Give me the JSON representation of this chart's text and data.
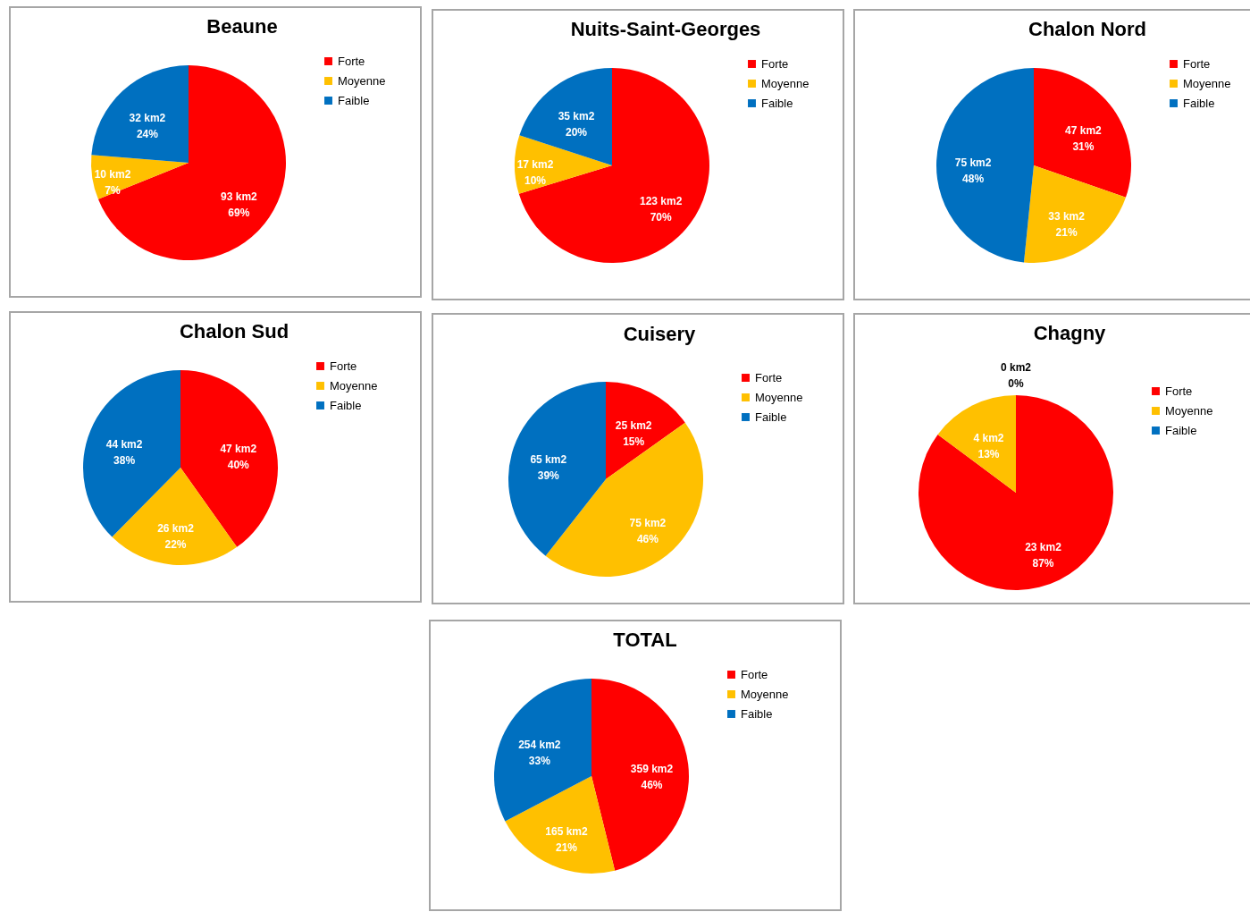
{
  "chart_data": [
    {
      "type": "pie",
      "title": "Beaune",
      "categories": [
        "Forte",
        "Moyenne",
        "Faible"
      ],
      "values": [
        93,
        10,
        32
      ],
      "value_labels": [
        "93 km2\n69%",
        "10 km2\n7%",
        "32 km2\n24%"
      ],
      "colors": [
        "#ff0000",
        "#ffc000",
        "#0070c0"
      ],
      "legend": "right"
    },
    {
      "type": "pie",
      "title": "Nuits-Saint-Georges",
      "categories": [
        "Forte",
        "Moyenne",
        "Faible"
      ],
      "values": [
        123,
        17,
        35
      ],
      "value_labels": [
        "123 km2\n70%",
        "17 km2\n10%",
        "35 km2\n20%"
      ],
      "colors": [
        "#ff0000",
        "#ffc000",
        "#0070c0"
      ],
      "legend": "right"
    },
    {
      "type": "pie",
      "title": "Chalon Nord",
      "categories": [
        "Forte",
        "Moyenne",
        "Faible"
      ],
      "values": [
        47,
        33,
        75
      ],
      "value_labels": [
        "47 km2\n31%",
        "33 km2\n21%",
        "75 km2\n48%"
      ],
      "colors": [
        "#ff0000",
        "#ffc000",
        "#0070c0"
      ],
      "legend": "right"
    },
    {
      "type": "pie",
      "title": "Chalon Sud",
      "categories": [
        "Forte",
        "Moyenne",
        "Faible"
      ],
      "values": [
        47,
        26,
        44
      ],
      "value_labels": [
        "47 km2\n40%",
        "26 km2\n22%",
        "44 km2\n38%"
      ],
      "colors": [
        "#ff0000",
        "#ffc000",
        "#0070c0"
      ],
      "legend": "right"
    },
    {
      "type": "pie",
      "title": "Cuisery",
      "categories": [
        "Forte",
        "Moyenne",
        "Faible"
      ],
      "values": [
        25,
        75,
        65
      ],
      "value_labels": [
        "25 km2\n15%",
        "75 km2\n46%",
        "65 km2\n39%"
      ],
      "colors": [
        "#ff0000",
        "#ffc000",
        "#0070c0"
      ],
      "legend": "right"
    },
    {
      "type": "pie",
      "title": "Chagny",
      "categories": [
        "Forte",
        "Moyenne",
        "Faible"
      ],
      "values": [
        23,
        4,
        0
      ],
      "value_labels": [
        "23 km2\n87%",
        "4 km2\n13%",
        "0 km2\n0%"
      ],
      "colors": [
        "#ff0000",
        "#ffc000",
        "#0070c0"
      ],
      "legend": "right"
    },
    {
      "type": "pie",
      "title": "TOTAL",
      "categories": [
        "Forte",
        "Moyenne",
        "Faible"
      ],
      "values": [
        359,
        165,
        254
      ],
      "value_labels": [
        "359 km2\n46%",
        "165 km2\n21%",
        "254 km2\n33%"
      ],
      "colors": [
        "#ff0000",
        "#ffc000",
        "#0070c0"
      ],
      "legend": "right"
    }
  ]
}
